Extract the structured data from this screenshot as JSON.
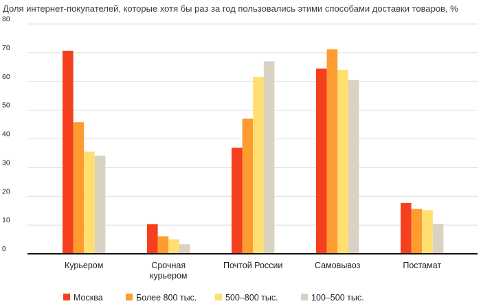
{
  "chart_data": {
    "type": "bar",
    "title": "Доля интернет-покупателей, которые хотя бы раз за год пользовались этими способами доставки товаров, %",
    "categories": [
      [
        "Курьером"
      ],
      [
        "Срочная",
        "курьером"
      ],
      [
        "Почтой России"
      ],
      [
        "Самовывоз"
      ],
      [
        "Постамат"
      ]
    ],
    "series": [
      {
        "name": "Москва",
        "color": "#f4401e",
        "values": [
          70.7,
          10.3,
          36.9,
          64.5,
          17.7
        ]
      },
      {
        "name": "Более 800 тыс.",
        "color": "#fe9c31",
        "values": [
          45.8,
          6.1,
          47.1,
          71.2,
          15.6
        ]
      },
      {
        "name": "500–800 тыс.",
        "color": "#fedf6f",
        "values": [
          35.6,
          5.0,
          61.6,
          64.0,
          15.2
        ]
      },
      {
        "name": "100–500 тыс.",
        "color": "#d9d2c2",
        "values": [
          34.2,
          3.3,
          67.0,
          60.5,
          10.4
        ]
      }
    ],
    "ylim": [
      0,
      80
    ],
    "yticks": [
      0,
      10,
      20,
      30,
      40,
      50,
      60,
      70,
      80
    ],
    "xlabel": "",
    "ylabel": "",
    "grid": true,
    "legend_position": "bottom"
  }
}
